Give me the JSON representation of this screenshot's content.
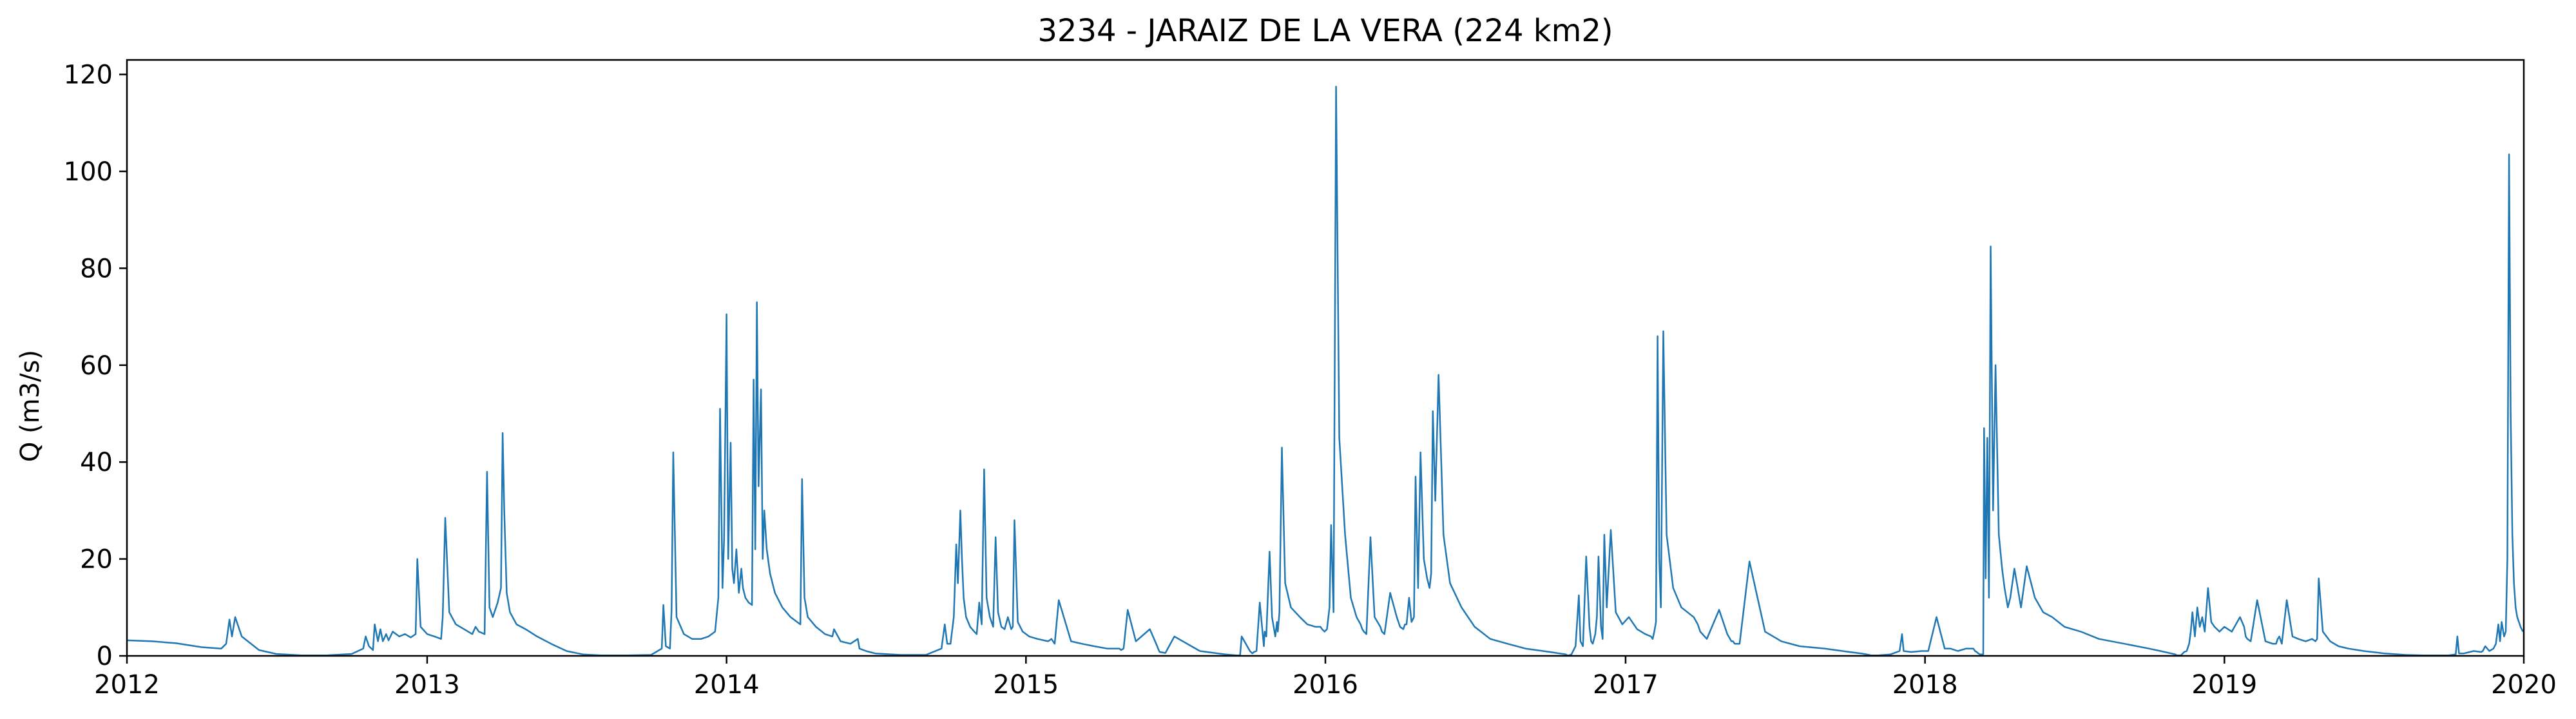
{
  "chart_data": {
    "type": "line",
    "title": "3234 - JARAIZ DE LA VERA (224 km2)",
    "xlabel": "",
    "ylabel": "Q (m3/s)",
    "xlim": [
      "2012-01-01",
      "2020-01-01"
    ],
    "ylim": [
      0,
      123
    ],
    "x_ticks": [
      "2012",
      "2013",
      "2014",
      "2015",
      "2016",
      "2017",
      "2018",
      "2019",
      "2020"
    ],
    "y_ticks": [
      0,
      20,
      40,
      60,
      80,
      100,
      120
    ],
    "grid": false,
    "line_color": "#1f77b4",
    "series": [
      {
        "x": [
          "2012-01-01",
          "2012-02-01",
          "2012-03-01",
          "2012-04-01",
          "2012-04-25",
          "2012-05-01",
          "2012-05-03",
          "2012-05-05",
          "2012-05-08",
          "2012-05-12",
          "2012-05-20",
          "2012-06-10",
          "2012-07-01",
          "2012-08-01",
          "2012-09-01",
          "2012-10-01",
          "2012-10-15",
          "2012-10-18",
          "2012-10-22",
          "2012-10-27",
          "2012-10-29",
          "2012-11-02",
          "2012-11-05",
          "2012-11-08",
          "2012-11-12",
          "2012-11-15",
          "2012-11-20",
          "2012-11-28",
          "2012-12-05",
          "2012-12-12",
          "2012-12-18",
          "2012-12-20",
          "2012-12-24",
          "2013-01-01",
          "2013-01-10",
          "2013-01-18",
          "2013-01-20",
          "2013-01-23",
          "2013-01-28",
          "2013-02-05",
          "2013-02-15",
          "2013-02-25",
          "2013-03-01",
          "2013-03-05",
          "2013-03-12",
          "2013-03-15",
          "2013-03-18",
          "2013-03-22",
          "2013-03-28",
          "2013-04-01",
          "2013-04-03",
          "2013-04-05",
          "2013-04-08",
          "2013-04-12",
          "2013-04-20",
          "2013-05-01",
          "2013-05-15",
          "2013-06-01",
          "2013-06-20",
          "2013-07-10",
          "2013-08-01",
          "2013-09-01",
          "2013-10-01",
          "2013-10-14",
          "2013-10-16",
          "2013-10-19",
          "2013-10-24",
          "2013-10-26",
          "2013-10-28",
          "2013-11-01",
          "2013-11-10",
          "2013-11-20",
          "2013-12-01",
          "2013-12-10",
          "2013-12-18",
          "2013-12-22",
          "2013-12-24",
          "2013-12-27",
          "2013-12-29",
          "2014-01-01",
          "2014-01-03",
          "2014-01-06",
          "2014-01-08",
          "2014-01-10",
          "2014-01-13",
          "2014-01-16",
          "2014-01-19",
          "2014-01-21",
          "2014-01-24",
          "2014-01-28",
          "2014-02-01",
          "2014-02-03",
          "2014-02-05",
          "2014-02-07",
          "2014-02-09",
          "2014-02-12",
          "2014-02-14",
          "2014-02-16",
          "2014-02-19",
          "2014-02-23",
          "2014-03-01",
          "2014-03-10",
          "2014-03-20",
          "2014-03-28",
          "2014-04-01",
          "2014-04-03",
          "2014-04-06",
          "2014-04-10",
          "2014-04-20",
          "2014-05-01",
          "2014-05-10",
          "2014-05-12",
          "2014-05-20",
          "2014-06-01",
          "2014-06-10",
          "2014-06-12",
          "2014-06-20",
          "2014-07-01",
          "2014-08-01",
          "2014-09-01",
          "2014-09-20",
          "2014-09-24",
          "2014-09-27",
          "2014-10-01",
          "2014-10-05",
          "2014-10-08",
          "2014-10-10",
          "2014-10-13",
          "2014-10-15",
          "2014-10-17",
          "2014-10-20",
          "2014-10-25",
          "2014-10-30",
          "2014-11-02",
          "2014-11-05",
          "2014-11-08",
          "2014-11-11",
          "2014-11-14",
          "2014-11-18",
          "2014-11-22",
          "2014-11-25",
          "2014-11-28",
          "2014-12-02",
          "2014-12-06",
          "2014-12-10",
          "2014-12-14",
          "2014-12-16",
          "2014-12-18",
          "2014-12-22",
          "2014-12-28",
          "2015-01-05",
          "2015-01-15",
          "2015-01-28",
          "2015-02-01",
          "2015-02-05",
          "2015-02-10",
          "2015-02-25",
          "2015-03-10",
          "2015-03-25",
          "2015-04-10",
          "2015-04-25",
          "2015-04-27",
          "2015-04-30",
          "2015-05-05",
          "2015-05-15",
          "2015-06-01",
          "2015-06-10",
          "2015-06-11",
          "2015-06-13",
          "2015-06-20",
          "2015-07-01",
          "2015-08-01",
          "2015-09-01",
          "2015-09-15",
          "2015-09-18",
          "2015-09-19",
          "2015-09-21",
          "2015-10-01",
          "2015-10-04",
          "2015-10-06",
          "2015-10-09",
          "2015-10-13",
          "2015-10-18",
          "2015-10-19",
          "2015-10-21",
          "2015-10-25",
          "2015-10-28",
          "2015-11-01",
          "2015-11-03",
          "2015-11-04",
          "2015-11-06",
          "2015-11-09",
          "2015-11-13",
          "2015-11-20",
          "2015-12-01",
          "2015-12-10",
          "2015-12-20",
          "2015-12-26",
          "2015-12-28",
          "2015-12-31",
          "2016-01-03",
          "2016-01-06",
          "2016-01-08",
          "2016-01-11",
          "2016-01-14",
          "2016-01-18",
          "2016-01-25",
          "2016-02-01",
          "2016-02-08",
          "2016-02-13",
          "2016-02-15",
          "2016-02-17",
          "2016-02-20",
          "2016-02-25",
          "2016-03-01",
          "2016-03-08",
          "2016-03-10",
          "2016-03-13",
          "2016-03-20",
          "2016-03-28",
          "2016-04-01",
          "2016-04-05",
          "2016-04-07",
          "2016-04-09",
          "2016-04-12",
          "2016-04-15",
          "2016-04-18",
          "2016-04-20",
          "2016-04-23",
          "2016-04-26",
          "2016-04-30",
          "2016-05-04",
          "2016-05-07",
          "2016-05-09",
          "2016-05-11",
          "2016-05-14",
          "2016-05-18",
          "2016-05-24",
          "2016-06-01",
          "2016-06-15",
          "2016-07-01",
          "2016-07-20",
          "2016-08-10",
          "2016-09-01",
          "2016-10-01",
          "2016-10-20",
          "2016-10-22",
          "2016-10-24",
          "2016-10-27",
          "2016-11-01",
          "2016-11-05",
          "2016-11-07",
          "2016-11-10",
          "2016-11-14",
          "2016-11-18",
          "2016-11-20",
          "2016-11-22",
          "2016-11-25",
          "2016-11-27",
          "2016-11-29",
          "2016-12-02",
          "2016-12-04",
          "2016-12-06",
          "2016-12-09",
          "2016-12-14",
          "2016-12-20",
          "2016-12-28",
          "2017-01-05",
          "2017-01-15",
          "2017-01-25",
          "2017-02-01",
          "2017-02-03",
          "2017-02-05",
          "2017-02-07",
          "2017-02-09",
          "2017-02-11",
          "2017-02-13",
          "2017-02-16",
          "2017-02-20",
          "2017-02-28",
          "2017-03-10",
          "2017-03-25",
          "2017-03-30",
          "2017-04-02",
          "2017-04-10",
          "2017-04-25",
          "2017-05-05",
          "2017-05-10",
          "2017-05-12",
          "2017-05-14",
          "2017-05-20",
          "2017-06-01",
          "2017-06-20",
          "2017-07-10",
          "2017-08-01",
          "2017-09-01",
          "2017-10-01",
          "2017-10-15",
          "2017-10-25",
          "2017-10-27",
          "2017-10-30",
          "2017-11-05",
          "2017-11-20",
          "2017-12-01",
          "2017-12-04",
          "2017-12-06",
          "2017-12-15",
          "2017-12-28",
          "2018-01-05",
          "2018-01-15",
          "2018-01-25",
          "2018-02-01",
          "2018-02-10",
          "2018-02-20",
          "2018-03-01",
          "2018-03-03",
          "2018-03-05",
          "2018-03-07",
          "2018-03-08",
          "2018-03-09",
          "2018-03-11",
          "2018-03-13",
          "2018-03-14",
          "2018-03-16",
          "2018-03-18",
          "2018-03-20",
          "2018-03-22",
          "2018-03-25",
          "2018-03-28",
          "2018-04-01",
          "2018-04-05",
          "2018-04-08",
          "2018-04-10",
          "2018-04-12",
          "2018-04-15",
          "2018-04-20",
          "2018-04-28",
          "2018-05-05",
          "2018-05-15",
          "2018-05-25",
          "2018-06-05",
          "2018-06-20",
          "2018-07-10",
          "2018-08-01",
          "2018-09-01",
          "2018-10-01",
          "2018-10-15",
          "2018-10-28",
          "2018-11-02",
          "2018-11-04",
          "2018-11-06",
          "2018-11-09",
          "2018-11-13",
          "2018-11-16",
          "2018-11-19",
          "2018-11-21",
          "2018-11-23",
          "2018-11-26",
          "2018-11-29",
          "2018-12-02",
          "2018-12-05",
          "2018-12-08",
          "2018-12-12",
          "2018-12-16",
          "2018-12-20",
          "2018-12-26",
          "2019-01-01",
          "2019-01-10",
          "2019-01-20",
          "2019-01-25",
          "2019-01-27",
          "2019-01-29",
          "2019-02-02",
          "2019-02-10",
          "2019-02-20",
          "2019-03-01",
          "2019-03-05",
          "2019-03-07",
          "2019-03-09",
          "2019-03-12",
          "2019-03-18",
          "2019-03-25",
          "2019-04-01",
          "2019-04-10",
          "2019-04-18",
          "2019-04-22",
          "2019-04-24",
          "2019-04-26",
          "2019-05-01",
          "2019-05-10",
          "2019-05-20",
          "2019-06-01",
          "2019-06-20",
          "2019-07-15",
          "2019-08-10",
          "2019-09-01",
          "2019-10-01",
          "2019-10-10",
          "2019-10-12",
          "2019-10-14",
          "2019-10-20",
          "2019-11-01",
          "2019-11-10",
          "2019-11-12",
          "2019-11-15",
          "2019-11-20",
          "2019-11-25",
          "2019-11-28",
          "2019-12-01",
          "2019-12-03",
          "2019-12-05",
          "2019-12-08",
          "2019-12-10",
          "2019-12-12",
          "2019-12-14",
          "2019-12-16",
          "2019-12-18",
          "2019-12-20",
          "2019-12-22",
          "2019-12-24",
          "2019-12-26",
          "2019-12-28",
          "2019-12-31"
        ],
        "y": [
          3.2,
          3.0,
          2.6,
          1.8,
          1.5,
          2.5,
          5.0,
          7.5,
          4.0,
          8.0,
          4.0,
          1.2,
          0.4,
          0.1,
          0.1,
          0.4,
          1.5,
          4.0,
          2.0,
          1.2,
          6.5,
          3.0,
          5.5,
          3.0,
          4.5,
          3.2,
          5.0,
          4.0,
          4.5,
          3.8,
          4.5,
          20.0,
          6.0,
          4.5,
          4.0,
          3.5,
          8.0,
          28.5,
          9.0,
          6.5,
          5.5,
          4.5,
          6.0,
          5.0,
          4.5,
          38.0,
          10.0,
          8.0,
          11.0,
          14.0,
          46.0,
          30.0,
          13.0,
          9.0,
          6.5,
          5.5,
          4.0,
          2.5,
          1.0,
          0.3,
          0.1,
          0.1,
          0.2,
          1.5,
          10.5,
          2.0,
          1.5,
          9.5,
          42.0,
          8.0,
          4.5,
          3.5,
          3.5,
          4.0,
          5.0,
          12.0,
          51.0,
          14.0,
          24.0,
          70.5,
          20.0,
          44.0,
          18.0,
          15.0,
          22.0,
          13.0,
          18.0,
          14.0,
          12.0,
          11.0,
          10.5,
          57.0,
          22.0,
          73.0,
          35.0,
          55.0,
          20.0,
          30.0,
          22.0,
          17.0,
          13.0,
          10.0,
          8.0,
          7.0,
          6.5,
          36.5,
          12.0,
          8.0,
          6.0,
          4.5,
          4.0,
          5.5,
          3.0,
          2.5,
          3.5,
          1.5,
          1.0,
          0.5,
          0.2,
          0.2,
          1.5,
          6.5,
          2.5,
          2.5,
          8.0,
          23.0,
          15.0,
          30.0,
          20.0,
          12.0,
          8.0,
          6.0,
          5.0,
          4.5,
          11.0,
          6.5,
          38.5,
          12.0,
          8.0,
          6.0,
          24.5,
          9.0,
          6.0,
          5.5,
          8.0,
          5.5,
          6.0,
          28.0,
          7.0,
          5.0,
          4.0,
          3.5,
          3.0,
          3.5,
          2.5,
          11.5,
          3.0,
          2.5,
          2.0,
          1.5,
          1.5,
          1.2,
          1.5,
          9.5,
          3.0,
          5.5,
          2.0,
          1.5,
          0.8,
          0.6,
          4.0,
          1.0,
          0.3,
          0.1,
          0.1,
          0.1,
          4.0,
          1.0,
          0.5,
          0.8,
          1.0,
          11.0,
          2.0,
          5.0,
          4.0,
          21.5,
          8.0,
          4.0,
          7.0,
          5.0,
          9.0,
          43.0,
          15.0,
          10.0,
          8.0,
          6.5,
          6.0,
          6.0,
          5.5,
          5.0,
          5.5,
          10.0,
          27.0,
          9.0,
          117.5,
          45.0,
          25.0,
          12.0,
          8.0,
          6.5,
          5.5,
          5.0,
          4.5,
          24.5,
          8.0,
          6.0,
          5.0,
          4.5,
          13.0,
          8.0,
          6.0,
          5.5,
          6.5,
          6.5,
          12.0,
          7.0,
          8.0,
          37.0,
          14.0,
          42.0,
          20.0,
          16.0,
          14.0,
          17.0,
          50.5,
          32.0,
          58.0,
          25.0,
          15.0,
          10.0,
          6.0,
          3.5,
          2.5,
          1.5,
          0.8,
          0.3,
          0.1,
          0.1,
          0.3,
          2.0,
          12.5,
          3.0,
          2.0,
          20.5,
          6.0,
          3.0,
          2.5,
          4.5,
          8.0,
          20.5,
          6.0,
          3.5,
          25.0,
          10.0,
          26.0,
          9.0,
          6.5,
          8.0,
          5.5,
          4.5,
          4.0,
          3.5,
          5.0,
          7.0,
          66.0,
          20.0,
          10.0,
          67.0,
          25.0,
          14.0,
          10.0,
          8.0,
          6.5,
          5.0,
          3.5,
          9.5,
          4.5,
          3.0,
          3.0,
          2.5,
          2.5,
          19.5,
          5.0,
          3.0,
          2.0,
          1.5,
          0.8,
          0.5,
          0.2,
          0.1,
          0.1,
          0.1,
          0.3,
          1.0,
          4.5,
          1.0,
          0.8,
          1.0,
          1.0,
          8.0,
          1.5,
          1.5,
          1.0,
          1.5,
          1.5,
          1.0,
          0.8,
          0.5,
          0.4,
          0.3,
          0.3,
          0.3,
          47.0,
          16.0,
          45.0,
          12.0,
          84.5,
          30.0,
          60.0,
          25.0,
          18.0,
          14.0,
          12.0,
          10.0,
          12.0,
          18.0,
          10.0,
          18.5,
          12.0,
          9.0,
          8.0,
          6.0,
          5.0,
          3.5,
          2.5,
          1.5,
          1.0,
          0.5,
          0.3,
          0.1,
          0.1,
          0.1,
          0.8,
          1.0,
          2.5,
          5.0,
          9.0,
          4.0,
          10.0,
          6.0,
          8.0,
          5.0,
          14.0,
          7.0,
          6.0,
          5.0,
          6.0,
          5.0,
          8.0,
          6.0,
          4.0,
          3.5,
          3.0,
          11.5,
          3.0,
          2.5,
          2.5,
          3.5,
          4.0,
          2.5,
          11.5,
          4.0,
          3.5,
          3.0,
          3.5,
          3.0,
          3.5,
          16.0,
          5.0,
          3.0,
          2.0,
          1.5,
          1.0,
          0.5,
          0.2,
          0.1,
          0.1,
          0.3,
          4.0,
          0.5,
          0.5,
          1.0,
          0.8,
          1.0,
          2.0,
          1.0,
          1.5,
          2.5,
          6.5,
          3.0,
          7.0,
          4.0,
          5.0,
          20.0,
          103.5,
          50.0,
          25.0,
          15.0,
          10.0,
          8.0,
          7.0,
          6.0,
          5.0
        ]
      }
    ]
  }
}
